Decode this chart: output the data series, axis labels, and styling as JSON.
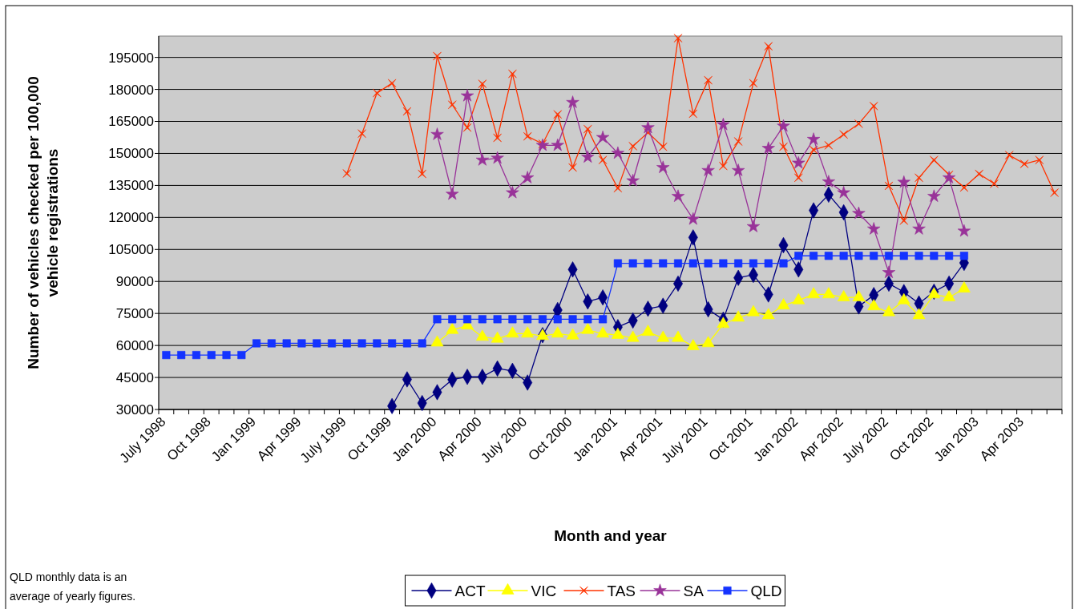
{
  "chart_data": {
    "type": "line",
    "ylabel": "Number of vehicles checked per 100,000\nvehicle registrations",
    "xlabel": "Month and year",
    "annotations": [
      "QLD monthly data is an\naverage of yearly figures."
    ],
    "categories": [
      "July 1998",
      null,
      null,
      "Oct 1998",
      null,
      null,
      "Jan 1999",
      null,
      null,
      "Apr 1999",
      null,
      null,
      "July 1999",
      null,
      null,
      "Oct 1999",
      null,
      null,
      "Jan 2000",
      null,
      null,
      "Apr 2000",
      null,
      null,
      "July 2000",
      null,
      null,
      "Oct 2000",
      null,
      null,
      "Jan 2001",
      null,
      null,
      "Apr 2001",
      null,
      null,
      "July 2001",
      null,
      null,
      "Oct 2001",
      null,
      null,
      "Jan 2002",
      null,
      null,
      "Apr 2002",
      null,
      null,
      "July 2002",
      null,
      null,
      "Oct 2002",
      null,
      null,
      "Jan 2003",
      null,
      null,
      "Apr 2003",
      null,
      null
    ],
    "ylim": [
      30000,
      205000
    ],
    "yticks": [
      30000,
      45000,
      60000,
      75000,
      90000,
      105000,
      120000,
      135000,
      150000,
      165000,
      180000,
      195000
    ],
    "grid": "y",
    "legend": "bottom",
    "series": [
      {
        "name": "ACT",
        "color": "#000080",
        "marker": "diamond",
        "values": [
          null,
          null,
          null,
          null,
          null,
          null,
          null,
          null,
          null,
          null,
          null,
          null,
          null,
          null,
          null,
          31600,
          44100,
          33000,
          38100,
          44000,
          45300,
          45300,
          49200,
          48100,
          42600,
          64800,
          76600,
          95600,
          80600,
          82500,
          68600,
          71700,
          77200,
          78600,
          89000,
          110600,
          76900,
          72100,
          91700,
          93100,
          83900,
          107000,
          95600,
          123300,
          130700,
          122400,
          78300,
          83600,
          89000,
          85000,
          79700,
          85200,
          89000,
          98700,
          null,
          null,
          null,
          null,
          null,
          null
        ]
      },
      {
        "name": "VIC",
        "color": "#ffff00",
        "marker": "triangle",
        "values": [
          null,
          null,
          null,
          null,
          null,
          null,
          null,
          null,
          null,
          null,
          null,
          null,
          null,
          null,
          null,
          null,
          null,
          null,
          61300,
          67200,
          69300,
          64000,
          63100,
          65500,
          65500,
          64400,
          65500,
          64600,
          67200,
          65500,
          64900,
          63500,
          66300,
          63500,
          63500,
          59600,
          61000,
          70000,
          73000,
          75500,
          74100,
          78700,
          81100,
          83900,
          83900,
          82500,
          82500,
          78300,
          75500,
          81100,
          74100,
          83900,
          82500,
          86600,
          null,
          null,
          null,
          null,
          null,
          null
        ]
      },
      {
        "name": "TAS",
        "color": "#ff3300",
        "marker": "cross",
        "values": [
          null,
          null,
          null,
          null,
          null,
          null,
          null,
          null,
          null,
          null,
          null,
          null,
          140600,
          159300,
          178300,
          182900,
          169700,
          140400,
          195600,
          172800,
          162100,
          182600,
          157300,
          187300,
          158000,
          154500,
          168300,
          143400,
          161400,
          146900,
          133700,
          153400,
          159800,
          153100,
          204000,
          168600,
          184300,
          144100,
          155600,
          182900,
          200200,
          153100,
          138600,
          151700,
          153800,
          158900,
          163900,
          172200,
          134800,
          118500,
          138600,
          146900,
          140000,
          134000,
          140400,
          135800,
          149200,
          145100,
          146900,
          131600
        ]
      },
      {
        "name": "SA",
        "color": "#993399",
        "marker": "star",
        "values": [
          null,
          null,
          null,
          null,
          null,
          null,
          null,
          null,
          null,
          null,
          null,
          null,
          null,
          null,
          null,
          null,
          null,
          null,
          158900,
          130900,
          177000,
          146900,
          147800,
          131600,
          138600,
          153800,
          153800,
          173900,
          148300,
          157500,
          150100,
          137200,
          162100,
          143400,
          129900,
          119200,
          142000,
          163500,
          142000,
          115700,
          152400,
          162800,
          145500,
          156600,
          136700,
          131600,
          121900,
          114600,
          94200,
          136500,
          114600,
          129900,
          138600,
          113600,
          null,
          null,
          null,
          null,
          null,
          null
        ]
      },
      {
        "name": "QLD",
        "color": "#1433ff",
        "marker": "square",
        "values": [
          55500,
          55500,
          55500,
          55500,
          55500,
          55500,
          61000,
          61000,
          61000,
          61000,
          61000,
          61000,
          61000,
          61000,
          61000,
          61000,
          61000,
          61000,
          72300,
          72300,
          72300,
          72300,
          72300,
          72300,
          72300,
          72300,
          72300,
          72300,
          72300,
          72300,
          98500,
          98500,
          98500,
          98500,
          98500,
          98500,
          98500,
          98500,
          98500,
          98500,
          98500,
          98500,
          102000,
          102000,
          102000,
          102000,
          102000,
          102000,
          102000,
          102000,
          102000,
          102000,
          102000,
          102000,
          null,
          null,
          null,
          null,
          null,
          null
        ]
      }
    ]
  }
}
